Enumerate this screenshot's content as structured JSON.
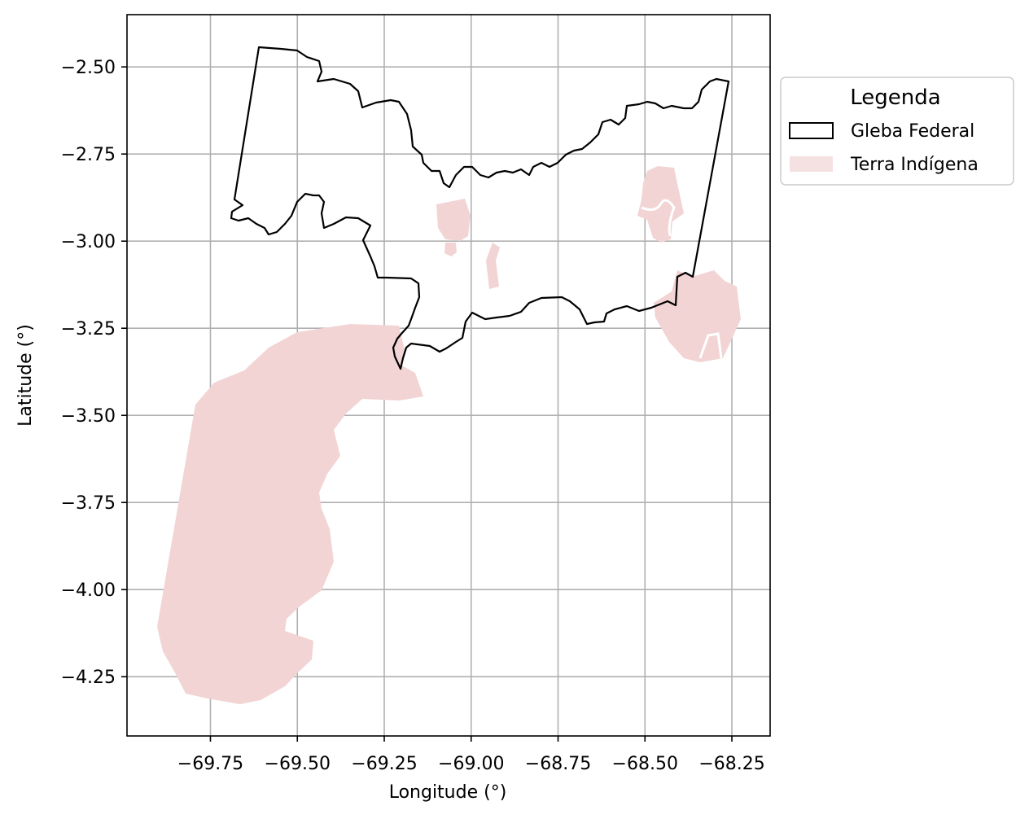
{
  "map": {
    "xlabel": "Longitude (°)",
    "ylabel": "Latitude (°)",
    "grid": true,
    "legend_placement": "outside-right-top",
    "x_ticks": [
      {
        "value": -69.75,
        "label": "−69.75"
      },
      {
        "value": -69.5,
        "label": "−69.50"
      },
      {
        "value": -69.25,
        "label": "−69.25"
      },
      {
        "value": -69.0,
        "label": "−69.00"
      },
      {
        "value": -68.75,
        "label": "−68.75"
      },
      {
        "value": -68.5,
        "label": "−68.50"
      },
      {
        "value": -68.25,
        "label": "−68.25"
      }
    ],
    "y_ticks": [
      {
        "value": -2.5,
        "label": "−2.50"
      },
      {
        "value": -2.75,
        "label": "−2.75"
      },
      {
        "value": -3.0,
        "label": "−3.00"
      },
      {
        "value": -3.25,
        "label": "−3.25"
      },
      {
        "value": -3.5,
        "label": "−3.50"
      },
      {
        "value": -3.75,
        "label": "−3.75"
      },
      {
        "value": -4.0,
        "label": "−4.00"
      },
      {
        "value": -4.25,
        "label": "−4.25"
      }
    ],
    "xlim": [
      -69.99,
      -68.14
    ],
    "ylim": [
      -4.42,
      -2.35
    ],
    "legend": {
      "title": "Legenda",
      "items": [
        {
          "label": "Gleba Federal",
          "kind": "outline",
          "stroke": "#000000",
          "fill": "#ffffff"
        },
        {
          "label": "Terra Indígena",
          "kind": "fill",
          "fill": "#f5e1e1"
        }
      ]
    },
    "colors": {
      "terra_indigena": "#f2d4d4",
      "gleba_outline": "#000000",
      "grid": "#b0b0b0"
    }
  }
}
